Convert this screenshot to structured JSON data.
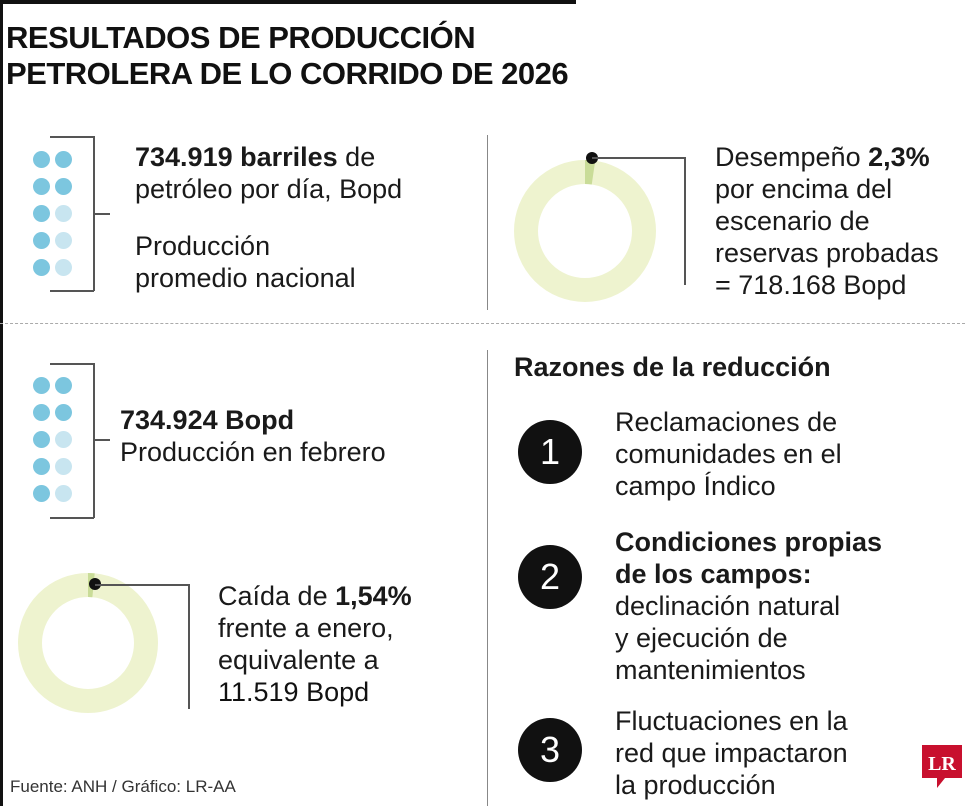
{
  "title": {
    "line1": "RESULTADOS DE PRODUCCIÓN",
    "line2": "PETROLERA DE LO CORRIDO DE 2026"
  },
  "colors": {
    "dot_dark": "#7cc6df",
    "dot_light": "#c8e5f0",
    "ring": "#eef3cf",
    "ring_segment": "#c9dc98",
    "number_badge": "#111111",
    "logo": "#c8102e"
  },
  "block_average": {
    "value_bold": "734.919 barriles",
    "value_rest": " de",
    "line2": "petróleo por día, Bopd",
    "label_line1": "Producción",
    "label_line2": "promedio nacional",
    "dots_filled_fraction": 0.7
  },
  "block_performance": {
    "prefix": "Desempeño ",
    "percent": "2,3%",
    "line2": "por encima del",
    "line3": "escenario de",
    "line4": "reservas probadas",
    "line5": "= 718.168 Bopd",
    "ring_percent": 2.3
  },
  "block_february": {
    "value": "734.924 Bopd",
    "label": "Producción en febrero",
    "dots_filled_fraction": 0.7
  },
  "block_drop": {
    "prefix": "Caída de ",
    "percent": "1,54%",
    "line2": "frente a enero,",
    "line3": "equivalente a",
    "line4": "11.519 Bopd",
    "ring_percent": 1.54
  },
  "reasons": {
    "heading": "Razones de la reducción",
    "items": [
      {
        "number": "1",
        "bold": [],
        "lines": [
          "Reclamaciones de",
          "comunidades en el",
          "campo Índico"
        ]
      },
      {
        "number": "2",
        "bold": [
          "Condiciones propias",
          "de los campos:"
        ],
        "lines": [
          "declinación natural",
          "y ejecución de",
          "mantenimientos"
        ]
      },
      {
        "number": "3",
        "bold": [],
        "lines": [
          "Fluctuaciones en la",
          "red que impactaron",
          "la producción"
        ]
      }
    ]
  },
  "footer": {
    "source": "Fuente: ANH / Gráfico: LR-AA",
    "logo": "LR"
  }
}
